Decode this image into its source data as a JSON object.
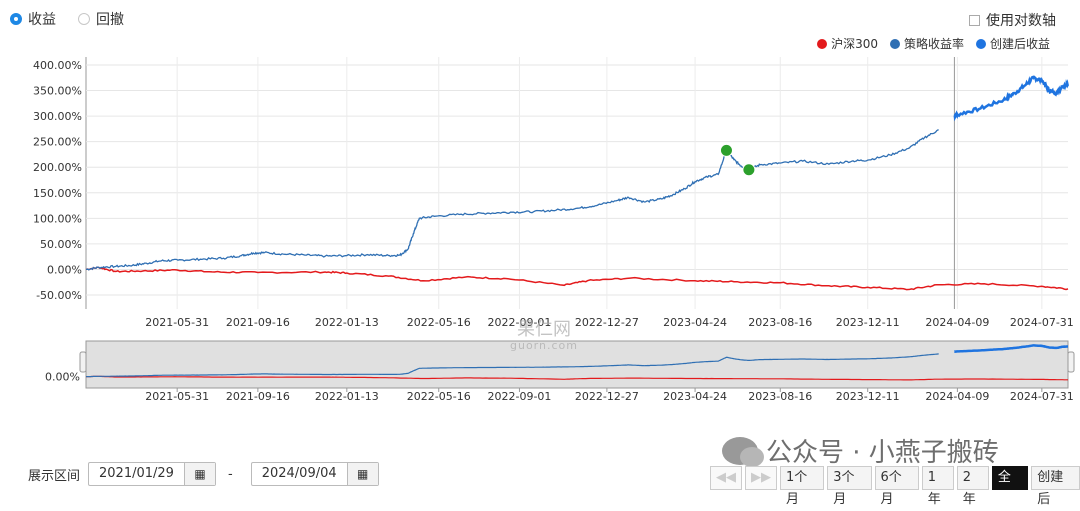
{
  "mode_toggle": {
    "options": [
      "收益",
      "回撤"
    ],
    "selected": 0
  },
  "log_axis": {
    "label": "使用对数轴",
    "checked": false
  },
  "legend": [
    {
      "label": "沪深300",
      "color": "#e31a1c"
    },
    {
      "label": "策略收益率",
      "color": "#2f6fb3"
    },
    {
      "label": "创建后收益",
      "color": "#1f74e0"
    }
  ],
  "chart_data": {
    "type": "line",
    "y_tick_labels": [
      "-50.00%",
      "0.00%",
      "50.00%",
      "100.00%",
      "150.00%",
      "200.00%",
      "250.00%",
      "300.00%",
      "350.00%",
      "400.00%"
    ],
    "ylim": [
      -50,
      400
    ],
    "x_tick_labels": [
      "2021-05-31",
      "2021-09-16",
      "2022-01-13",
      "2022-05-16",
      "2022-09-01",
      "2022-12-27",
      "2023-04-24",
      "2023-08-16",
      "2023-12-11",
      "2024-04-09",
      "2024-07-31"
    ],
    "x_range": [
      "2021-01-29",
      "2024-09-04"
    ],
    "grid": true,
    "legend_position": "top-right",
    "creation_marker_date": "2024-04-05",
    "series": [
      {
        "name": "策略收益率",
        "color": "#2f6fb3",
        "points": [
          [
            "2021-01-29",
            0
          ],
          [
            "2021-02-15",
            4
          ],
          [
            "2021-03-10",
            6
          ],
          [
            "2021-04-01",
            8
          ],
          [
            "2021-04-20",
            12
          ],
          [
            "2021-05-10",
            17
          ],
          [
            "2021-06-01",
            18
          ],
          [
            "2021-07-01",
            20
          ],
          [
            "2021-08-01",
            22
          ],
          [
            "2021-08-25",
            27
          ],
          [
            "2021-09-10",
            32
          ],
          [
            "2021-09-25",
            33
          ],
          [
            "2021-10-20",
            30
          ],
          [
            "2021-11-20",
            28
          ],
          [
            "2021-12-15",
            26
          ],
          [
            "2022-01-13",
            27
          ],
          [
            "2022-02-10",
            29
          ],
          [
            "2022-03-10",
            27
          ],
          [
            "2022-03-25",
            28
          ],
          [
            "2022-04-05",
            40
          ],
          [
            "2022-04-12",
            70
          ],
          [
            "2022-04-20",
            100
          ],
          [
            "2022-05-10",
            104
          ],
          [
            "2022-06-15",
            108
          ],
          [
            "2022-07-20",
            110
          ],
          [
            "2022-08-20",
            112
          ],
          [
            "2022-09-20",
            113
          ],
          [
            "2022-10-20",
            116
          ],
          [
            "2022-11-20",
            120
          ],
          [
            "2022-12-15",
            126
          ],
          [
            "2023-01-10",
            135
          ],
          [
            "2023-01-25",
            141
          ],
          [
            "2023-02-15",
            132
          ],
          [
            "2023-03-10",
            138
          ],
          [
            "2023-03-25",
            146
          ],
          [
            "2023-04-10",
            158
          ],
          [
            "2023-04-24",
            172
          ],
          [
            "2023-05-10",
            181
          ],
          [
            "2023-05-25",
            186
          ],
          [
            "2023-06-05",
            233
          ],
          [
            "2023-06-15",
            215
          ],
          [
            "2023-06-25",
            202
          ],
          [
            "2023-07-05",
            195
          ],
          [
            "2023-07-20",
            205
          ],
          [
            "2023-08-16",
            208
          ],
          [
            "2023-09-15",
            212
          ],
          [
            "2023-10-20",
            206
          ],
          [
            "2023-11-20",
            212
          ],
          [
            "2023-12-11",
            214
          ],
          [
            "2024-01-10",
            224
          ],
          [
            "2024-02-05",
            238
          ],
          [
            "2024-02-25",
            258
          ],
          [
            "2024-03-15",
            273
          ],
          [
            "2024-04-09",
            303
          ],
          [
            "2024-05-10",
            315
          ],
          [
            "2024-06-10",
            332
          ],
          [
            "2024-06-25",
            345
          ],
          [
            "2024-07-10",
            362
          ],
          [
            "2024-07-20",
            375
          ],
          [
            "2024-07-31",
            370
          ],
          [
            "2024-08-10",
            350
          ],
          [
            "2024-08-20",
            345
          ],
          [
            "2024-08-28",
            360
          ],
          [
            "2024-09-04",
            362
          ]
        ]
      },
      {
        "name": "沪深300",
        "color": "#e31a1c",
        "points": [
          [
            "2021-01-29",
            0
          ],
          [
            "2021-02-15",
            4
          ],
          [
            "2021-03-10",
            -4
          ],
          [
            "2021-04-15",
            -3
          ],
          [
            "2021-05-31",
            -1
          ],
          [
            "2021-07-20",
            -5
          ],
          [
            "2021-09-16",
            -6
          ],
          [
            "2021-12-15",
            -5
          ],
          [
            "2022-01-13",
            -7
          ],
          [
            "2022-03-10",
            -13
          ],
          [
            "2022-04-25",
            -22
          ],
          [
            "2022-06-20",
            -15
          ],
          [
            "2022-08-15",
            -18
          ],
          [
            "2022-10-31",
            -31
          ],
          [
            "2022-12-01",
            -22
          ],
          [
            "2023-01-27",
            -17
          ],
          [
            "2023-04-24",
            -22
          ],
          [
            "2023-06-15",
            -24
          ],
          [
            "2023-08-16",
            -26
          ],
          [
            "2023-10-20",
            -32
          ],
          [
            "2023-12-11",
            -35
          ],
          [
            "2024-02-05",
            -39
          ],
          [
            "2024-03-15",
            -30
          ],
          [
            "2024-05-15",
            -28
          ],
          [
            "2024-07-31",
            -33
          ],
          [
            "2024-09-04",
            -38
          ]
        ]
      }
    ],
    "markers": [
      {
        "date": "2023-06-05",
        "value": 233
      },
      {
        "date": "2023-07-05",
        "value": 195
      }
    ]
  },
  "navigator": {
    "y_label": "0.00%",
    "x_tick_labels": [
      "2021-05-31",
      "2021-09-16",
      "2022-01-13",
      "2022-05-16",
      "2022-09-01",
      "2022-12-27",
      "2023-04-24",
      "2023-08-16",
      "2023-12-11",
      "2024-04-09",
      "2024-07-31"
    ]
  },
  "date_range": {
    "label": "展示区间",
    "start": "2021/01/29",
    "end": "2024/09/04",
    "separator": "-"
  },
  "range_buttons": [
    {
      "label": "1个月",
      "active": false
    },
    {
      "label": "3个月",
      "active": false
    },
    {
      "label": "6个月",
      "active": false
    },
    {
      "label": "1年",
      "active": false
    },
    {
      "label": "2年",
      "active": false
    },
    {
      "label": "全部",
      "active": true
    },
    {
      "label": "创建后",
      "active": false
    }
  ],
  "watermarks": {
    "account": "公众号 · 小燕子搬砖",
    "site": "果仁网",
    "site_url": "guorn.com"
  }
}
